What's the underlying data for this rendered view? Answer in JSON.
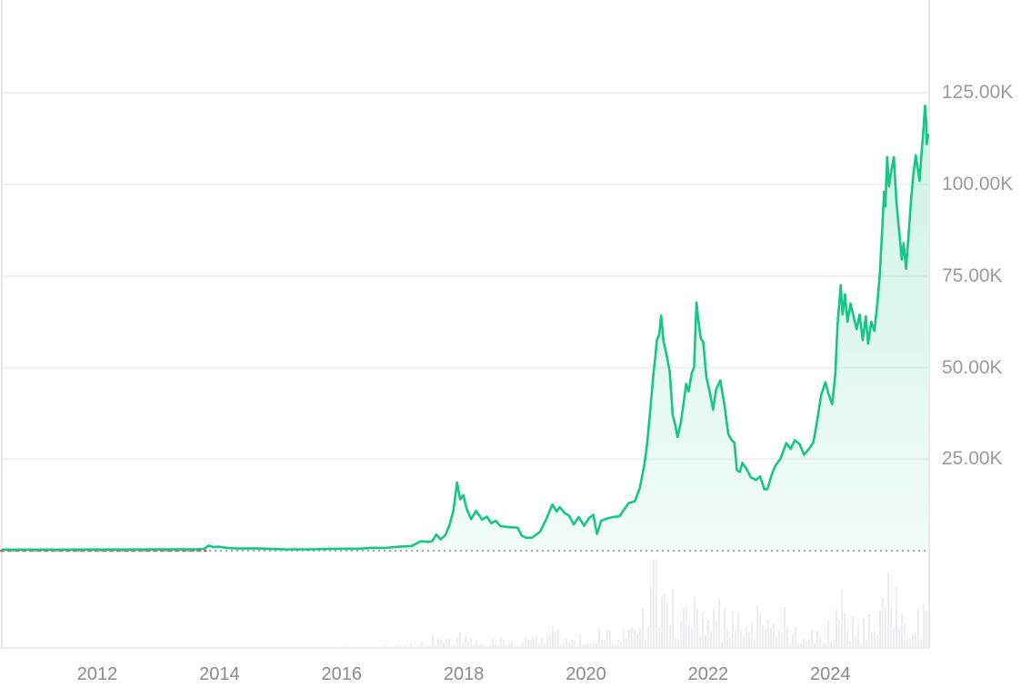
{
  "chart_data": {
    "type": "area",
    "legend": false,
    "grid": true,
    "x_axis": {
      "range_years": [
        2010.41,
        2025.61
      ],
      "ticks": [
        {
          "year": 2012,
          "label": "2012"
        },
        {
          "year": 2014,
          "label": "2014"
        },
        {
          "year": 2016,
          "label": "2016"
        },
        {
          "year": 2018,
          "label": "2018"
        },
        {
          "year": 2020,
          "label": "2020"
        },
        {
          "year": 2022,
          "label": "2022"
        },
        {
          "year": 2024,
          "label": "2024"
        }
      ]
    },
    "y_axis": {
      "unit": "K",
      "range_k": [
        0,
        151
      ],
      "ticks": [
        {
          "value": 125,
          "label": "125.00K"
        },
        {
          "value": 100,
          "label": "100.00K"
        },
        {
          "value": 75,
          "label": "75.00K"
        },
        {
          "value": 50,
          "label": "50.00K"
        },
        {
          "value": 25,
          "label": "25.00K"
        }
      ]
    },
    "baseline": {
      "value_k": 0,
      "style": "dotted"
    },
    "below_reference_segment": {
      "style": "dashed",
      "x_year_range": [
        2010.41,
        2013.79
      ]
    },
    "series": [
      {
        "name": "price-usd-thousands",
        "points": [
          [
            2010.45,
            0.3
          ],
          [
            2011.0,
            0.3
          ],
          [
            2011.5,
            0.3
          ],
          [
            2012.0,
            0.32
          ],
          [
            2012.5,
            0.33
          ],
          [
            2013.0,
            0.35
          ],
          [
            2013.4,
            0.4
          ],
          [
            2013.6,
            0.35
          ],
          [
            2013.75,
            0.5
          ],
          [
            2013.82,
            1.4
          ],
          [
            2013.9,
            1.0
          ],
          [
            2014.0,
            1.1
          ],
          [
            2014.1,
            0.8
          ],
          [
            2014.3,
            0.6
          ],
          [
            2014.6,
            0.65
          ],
          [
            2014.9,
            0.45
          ],
          [
            2015.1,
            0.35
          ],
          [
            2015.5,
            0.38
          ],
          [
            2015.8,
            0.48
          ],
          [
            2016.0,
            0.55
          ],
          [
            2016.3,
            0.55
          ],
          [
            2016.5,
            0.8
          ],
          [
            2016.7,
            0.75
          ],
          [
            2016.95,
            1.1
          ],
          [
            2017.15,
            1.3
          ],
          [
            2017.3,
            2.6
          ],
          [
            2017.42,
            2.4
          ],
          [
            2017.48,
            2.6
          ],
          [
            2017.55,
            4.4
          ],
          [
            2017.62,
            3.1
          ],
          [
            2017.7,
            4.3
          ],
          [
            2017.77,
            7.2
          ],
          [
            2017.83,
            11.0
          ],
          [
            2017.89,
            18.6
          ],
          [
            2017.94,
            14.0
          ],
          [
            2017.99,
            15.2
          ],
          [
            2018.05,
            11.3
          ],
          [
            2018.12,
            8.6
          ],
          [
            2018.2,
            10.9
          ],
          [
            2018.3,
            8.5
          ],
          [
            2018.38,
            9.3
          ],
          [
            2018.45,
            7.5
          ],
          [
            2018.52,
            8.2
          ],
          [
            2018.6,
            6.7
          ],
          [
            2018.75,
            6.4
          ],
          [
            2018.88,
            6.3
          ],
          [
            2018.95,
            4.1
          ],
          [
            2019.03,
            3.5
          ],
          [
            2019.12,
            3.6
          ],
          [
            2019.25,
            5.2
          ],
          [
            2019.35,
            8.6
          ],
          [
            2019.45,
            12.6
          ],
          [
            2019.52,
            10.7
          ],
          [
            2019.57,
            11.9
          ],
          [
            2019.65,
            10.3
          ],
          [
            2019.72,
            9.6
          ],
          [
            2019.8,
            7.2
          ],
          [
            2019.88,
            9.2
          ],
          [
            2019.97,
            6.8
          ],
          [
            2020.05,
            8.9
          ],
          [
            2020.12,
            9.8
          ],
          [
            2020.18,
            4.6
          ],
          [
            2020.25,
            8.2
          ],
          [
            2020.35,
            8.8
          ],
          [
            2020.45,
            9.2
          ],
          [
            2020.55,
            9.4
          ],
          [
            2020.63,
            11.4
          ],
          [
            2020.7,
            13.0
          ],
          [
            2020.8,
            13.5
          ],
          [
            2020.88,
            17.0
          ],
          [
            2020.95,
            23.0
          ],
          [
            2021.0,
            29.0
          ],
          [
            2021.05,
            38.0
          ],
          [
            2021.1,
            47.5
          ],
          [
            2021.13,
            52.0
          ],
          [
            2021.16,
            57.5
          ],
          [
            2021.2,
            59.0
          ],
          [
            2021.23,
            64.2
          ],
          [
            2021.27,
            57.0
          ],
          [
            2021.32,
            53.5
          ],
          [
            2021.37,
            49.0
          ],
          [
            2021.42,
            37.0
          ],
          [
            2021.46,
            34.5
          ],
          [
            2021.5,
            31.0
          ],
          [
            2021.55,
            34.8
          ],
          [
            2021.6,
            40.5
          ],
          [
            2021.64,
            45.5
          ],
          [
            2021.68,
            43.5
          ],
          [
            2021.73,
            48.5
          ],
          [
            2021.77,
            50.0
          ],
          [
            2021.81,
            67.8
          ],
          [
            2021.84,
            63.0
          ],
          [
            2021.88,
            58.0
          ],
          [
            2021.92,
            57.0
          ],
          [
            2021.97,
            47.5
          ],
          [
            2022.03,
            43.0
          ],
          [
            2022.08,
            38.5
          ],
          [
            2022.13,
            44.0
          ],
          [
            2022.2,
            46.5
          ],
          [
            2022.27,
            39.5
          ],
          [
            2022.33,
            31.8
          ],
          [
            2022.38,
            30.3
          ],
          [
            2022.43,
            29.5
          ],
          [
            2022.47,
            22.0
          ],
          [
            2022.52,
            21.5
          ],
          [
            2022.56,
            24.0
          ],
          [
            2022.63,
            22.3
          ],
          [
            2022.7,
            20.0
          ],
          [
            2022.78,
            19.3
          ],
          [
            2022.85,
            20.3
          ],
          [
            2022.92,
            16.8
          ],
          [
            2022.97,
            16.8
          ],
          [
            2023.05,
            21.2
          ],
          [
            2023.1,
            23.2
          ],
          [
            2023.18,
            25.0
          ],
          [
            2023.28,
            29.4
          ],
          [
            2023.35,
            27.8
          ],
          [
            2023.42,
            30.2
          ],
          [
            2023.5,
            29.0
          ],
          [
            2023.57,
            26.2
          ],
          [
            2023.65,
            27.8
          ],
          [
            2023.72,
            29.5
          ],
          [
            2023.78,
            35.0
          ],
          [
            2023.85,
            42.5
          ],
          [
            2023.92,
            46.0
          ],
          [
            2023.97,
            42.8
          ],
          [
            2024.03,
            40.0
          ],
          [
            2024.08,
            48.0
          ],
          [
            2024.12,
            62.0
          ],
          [
            2024.17,
            72.5
          ],
          [
            2024.2,
            64.5
          ],
          [
            2024.24,
            70.0
          ],
          [
            2024.28,
            62.5
          ],
          [
            2024.33,
            67.5
          ],
          [
            2024.38,
            64.0
          ],
          [
            2024.43,
            60.5
          ],
          [
            2024.48,
            64.5
          ],
          [
            2024.53,
            57.5
          ],
          [
            2024.58,
            64.0
          ],
          [
            2024.62,
            56.5
          ],
          [
            2024.67,
            62.5
          ],
          [
            2024.72,
            60.0
          ],
          [
            2024.77,
            67.5
          ],
          [
            2024.81,
            75.5
          ],
          [
            2024.85,
            88.0
          ],
          [
            2024.88,
            98.0
          ],
          [
            2024.9,
            94.0
          ],
          [
            2024.93,
            107.5
          ],
          [
            2024.96,
            99.5
          ],
          [
            2025.0,
            104.0
          ],
          [
            2025.04,
            107.5
          ],
          [
            2025.08,
            96.0
          ],
          [
            2025.11,
            90.0
          ],
          [
            2025.14,
            85.0
          ],
          [
            2025.17,
            79.5
          ],
          [
            2025.2,
            84.0
          ],
          [
            2025.24,
            77.0
          ],
          [
            2025.28,
            86.0
          ],
          [
            2025.32,
            95.5
          ],
          [
            2025.36,
            103.0
          ],
          [
            2025.4,
            108.0
          ],
          [
            2025.44,
            103.5
          ],
          [
            2025.46,
            101.0
          ],
          [
            2025.49,
            108.0
          ],
          [
            2025.52,
            114.0
          ],
          [
            2025.55,
            121.5
          ],
          [
            2025.57,
            117.0
          ],
          [
            2025.58,
            111.0
          ],
          [
            2025.6,
            113.5
          ]
        ]
      }
    ],
    "volume": {
      "relative_profile": [
        [
          2010.4,
          0
        ],
        [
          2015.5,
          0.5
        ],
        [
          2016.3,
          1.5
        ],
        [
          2016.8,
          3
        ],
        [
          2017.2,
          6
        ],
        [
          2017.6,
          12
        ],
        [
          2017.95,
          18
        ],
        [
          2018.2,
          12
        ],
        [
          2018.6,
          10
        ],
        [
          2019.0,
          13
        ],
        [
          2019.45,
          25
        ],
        [
          2019.8,
          16
        ],
        [
          2020.1,
          18
        ],
        [
          2020.25,
          30
        ],
        [
          2020.5,
          16
        ],
        [
          2020.8,
          25
        ],
        [
          2020.95,
          50
        ],
        [
          2021.05,
          98
        ],
        [
          2021.15,
          80
        ],
        [
          2021.25,
          60
        ],
        [
          2021.35,
          75
        ],
        [
          2021.45,
          65
        ],
        [
          2021.55,
          50
        ],
        [
          2021.65,
          45
        ],
        [
          2021.75,
          55
        ],
        [
          2021.85,
          70
        ],
        [
          2021.95,
          48
        ],
        [
          2022.05,
          50
        ],
        [
          2022.15,
          58
        ],
        [
          2022.25,
          45
        ],
        [
          2022.35,
          50
        ],
        [
          2022.45,
          58
        ],
        [
          2022.55,
          40
        ],
        [
          2022.65,
          42
        ],
        [
          2022.75,
          55
        ],
        [
          2022.85,
          88
        ],
        [
          2022.95,
          45
        ],
        [
          2023.1,
          35
        ],
        [
          2023.3,
          30
        ],
        [
          2023.5,
          25
        ],
        [
          2023.7,
          28
        ],
        [
          2023.9,
          35
        ],
        [
          2024.05,
          50
        ],
        [
          2024.17,
          68
        ],
        [
          2024.3,
          45
        ],
        [
          2024.45,
          38
        ],
        [
          2024.6,
          42
        ],
        [
          2024.75,
          50
        ],
        [
          2024.85,
          75
        ],
        [
          2024.95,
          98
        ],
        [
          2025.05,
          70
        ],
        [
          2025.15,
          60
        ],
        [
          2025.25,
          58
        ],
        [
          2025.35,
          48
        ],
        [
          2025.45,
          55
        ],
        [
          2025.55,
          75
        ],
        [
          2025.6,
          95
        ]
      ]
    }
  },
  "colors": {
    "line": "#16c784",
    "fill_top": "rgba(22,199,132,0.22)",
    "fill_bottom": "rgba(22,199,132,0.02)",
    "grid": "#f0f0f2",
    "border": "#e9e9ec",
    "dotted_baseline": "#a8a8a8",
    "red_dash": "#ea3943",
    "volume_bar": "#ededf0",
    "axis_text_x": "#8a8a8a",
    "axis_text_y": "#9b9b9b",
    "background": "#ffffff"
  }
}
